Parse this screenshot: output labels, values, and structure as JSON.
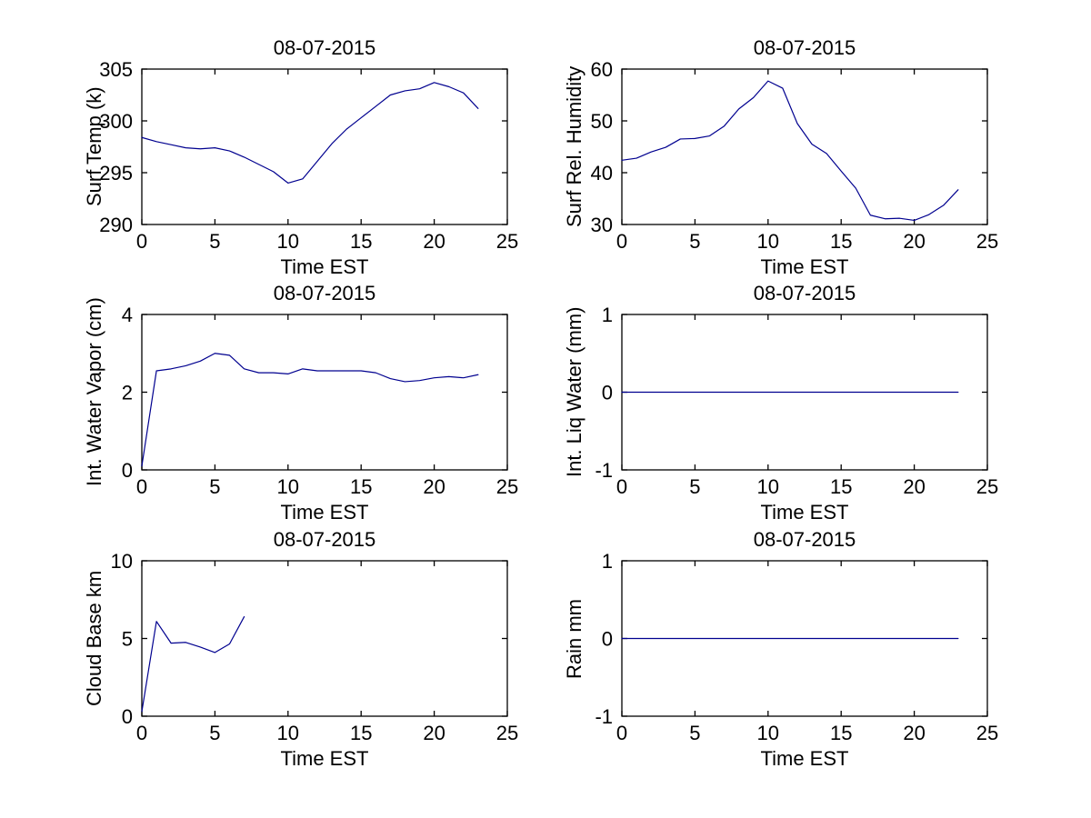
{
  "figure": {
    "background": "#ffffff",
    "axis_color": "#000000",
    "text_color": "#000000",
    "line_color": "#00008F"
  },
  "chart_data": [
    {
      "type": "line",
      "title": "08-07-2015",
      "xlabel": "Time EST",
      "ylabel": "Surf Temp (k)",
      "xlim": [
        0,
        25
      ],
      "xticks": [
        0,
        5,
        10,
        15,
        20,
        25
      ],
      "ylim": [
        290,
        305
      ],
      "yticks": [
        290,
        295,
        300,
        305
      ],
      "grid": false,
      "x": [
        0,
        1,
        2,
        3,
        4,
        5,
        6,
        7,
        8,
        9,
        10,
        11,
        12,
        13,
        14,
        15,
        16,
        17,
        18,
        19,
        20,
        21,
        22,
        23
      ],
      "y": [
        298.4,
        298.0,
        297.7,
        297.4,
        297.3,
        297.4,
        297.1,
        296.5,
        295.8,
        295.1,
        294.0,
        294.4,
        296.1,
        297.8,
        299.2,
        300.3,
        301.4,
        302.5,
        302.9,
        303.1,
        303.7,
        303.3,
        302.7,
        301.2
      ]
    },
    {
      "type": "line",
      "title": "08-07-2015",
      "xlabel": "Time EST",
      "ylabel": "Surf Rel. Humidity",
      "xlim": [
        0,
        25
      ],
      "xticks": [
        0,
        5,
        10,
        15,
        20,
        25
      ],
      "ylim": [
        30,
        60
      ],
      "yticks": [
        30,
        40,
        50,
        60
      ],
      "grid": false,
      "x": [
        0,
        1,
        2,
        3,
        4,
        5,
        6,
        7,
        8,
        9,
        10,
        11,
        12,
        13,
        14,
        15,
        16,
        17,
        18,
        19,
        20,
        21,
        22,
        23
      ],
      "y": [
        42.4,
        42.8,
        44.0,
        44.9,
        46.5,
        46.6,
        47.1,
        49.0,
        52.3,
        54.5,
        57.7,
        56.3,
        49.5,
        45.5,
        43.7,
        40.3,
        37.0,
        31.8,
        31.1,
        31.2,
        30.8,
        31.9,
        33.7,
        36.7
      ]
    },
    {
      "type": "line",
      "title": "08-07-2015",
      "xlabel": "Time EST",
      "ylabel": "Int. Water Vapor (cm)",
      "xlim": [
        0,
        25
      ],
      "xticks": [
        0,
        5,
        10,
        15,
        20,
        25
      ],
      "ylim": [
        0,
        4
      ],
      "yticks": [
        0,
        2,
        4
      ],
      "grid": false,
      "x": [
        0,
        1,
        2,
        3,
        4,
        5,
        6,
        7,
        8,
        9,
        10,
        11,
        12,
        13,
        14,
        15,
        16,
        17,
        18,
        19,
        20,
        21,
        22,
        23
      ],
      "y": [
        0.1,
        2.55,
        2.6,
        2.68,
        2.8,
        3.0,
        2.95,
        2.6,
        2.5,
        2.5,
        2.47,
        2.6,
        2.55,
        2.55,
        2.55,
        2.55,
        2.5,
        2.35,
        2.27,
        2.3,
        2.37,
        2.4,
        2.37,
        2.45
      ]
    },
    {
      "type": "line",
      "title": "08-07-2015",
      "xlabel": "Time EST",
      "ylabel": "Int. Liq Water (mm)",
      "xlim": [
        0,
        25
      ],
      "xticks": [
        0,
        5,
        10,
        15,
        20,
        25
      ],
      "ylim": [
        -1,
        1
      ],
      "yticks": [
        -1,
        0,
        1
      ],
      "grid": false,
      "x": [
        0,
        1,
        2,
        3,
        4,
        5,
        6,
        7,
        8,
        9,
        10,
        11,
        12,
        13,
        14,
        15,
        16,
        17,
        18,
        19,
        20,
        21,
        22,
        23
      ],
      "y": [
        0,
        0,
        0,
        0,
        0,
        0,
        0,
        0,
        0,
        0,
        0,
        0,
        0,
        0,
        0,
        0,
        0,
        0,
        0,
        0,
        0,
        0,
        0,
        0
      ]
    },
    {
      "type": "line",
      "title": "08-07-2015",
      "xlabel": "Time EST",
      "ylabel": "Cloud Base km",
      "xlim": [
        0,
        25
      ],
      "xticks": [
        0,
        5,
        10,
        15,
        20,
        25
      ],
      "ylim": [
        0,
        10
      ],
      "yticks": [
        0,
        5,
        10
      ],
      "grid": false,
      "x": [
        0,
        1,
        2,
        3,
        4,
        5,
        6,
        7
      ],
      "y": [
        0.3,
        6.1,
        4.7,
        4.75,
        4.45,
        4.1,
        4.65,
        6.4
      ]
    },
    {
      "type": "line",
      "title": "08-07-2015",
      "xlabel": "Time EST",
      "ylabel": "Rain mm",
      "xlim": [
        0,
        25
      ],
      "xticks": [
        0,
        5,
        10,
        15,
        20,
        25
      ],
      "ylim": [
        -1,
        1
      ],
      "yticks": [
        -1,
        0,
        1
      ],
      "grid": false,
      "x": [
        0,
        1,
        2,
        3,
        4,
        5,
        6,
        7,
        8,
        9,
        10,
        11,
        12,
        13,
        14,
        15,
        16,
        17,
        18,
        19,
        20,
        21,
        22,
        23
      ],
      "y": [
        0,
        0,
        0,
        0,
        0,
        0,
        0,
        0,
        0,
        0,
        0,
        0,
        0,
        0,
        0,
        0,
        0,
        0,
        0,
        0,
        0,
        0,
        0,
        0
      ]
    }
  ]
}
